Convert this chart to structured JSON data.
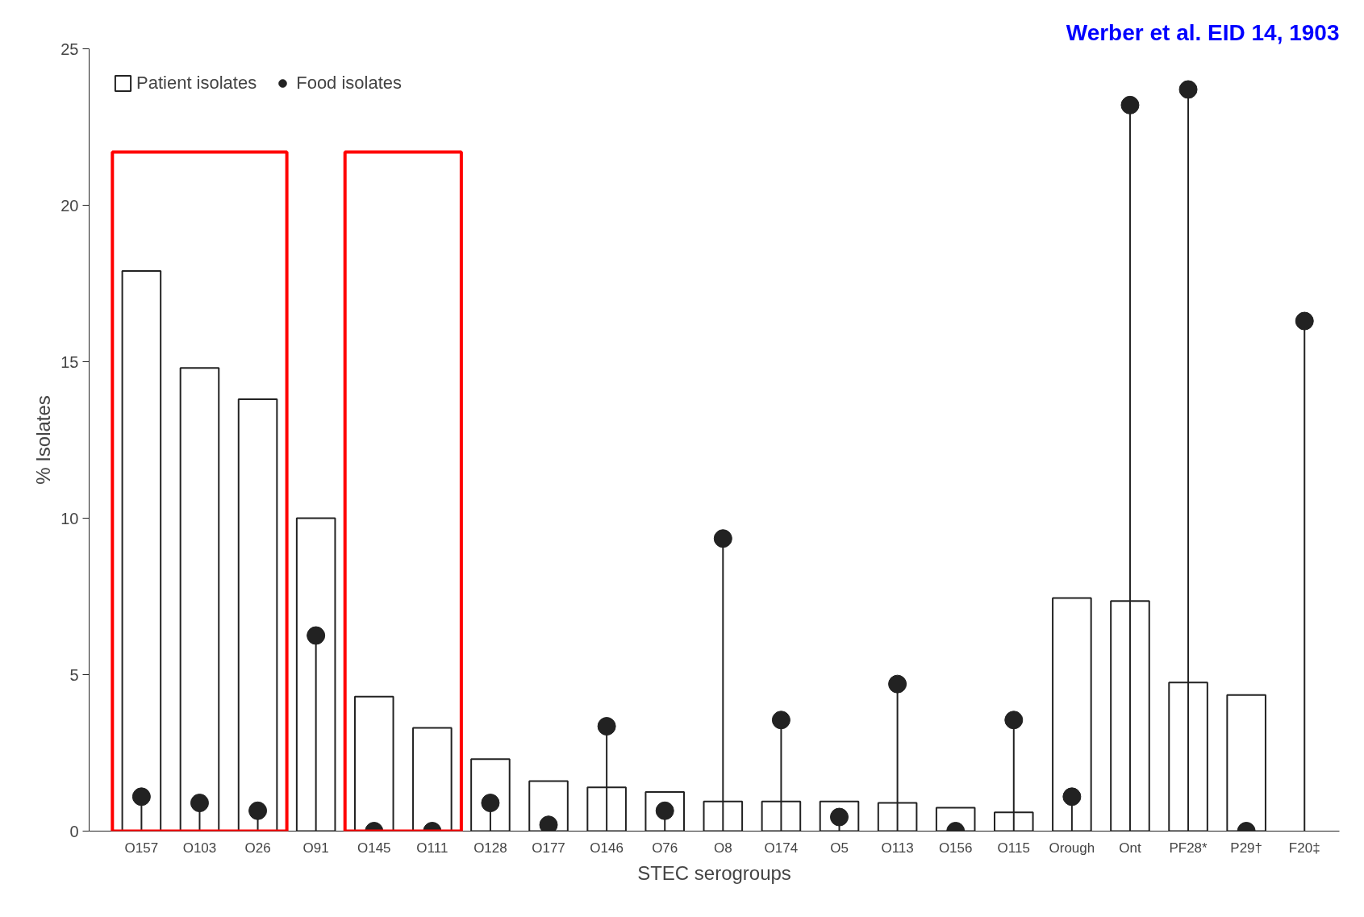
{
  "chart_data": {
    "type": "bar",
    "categories": [
      "O157",
      "O103",
      "O26",
      "O91",
      "O145",
      "O111",
      "O128",
      "O177",
      "O146",
      "O76",
      "O8",
      "O174",
      "O5",
      "O113",
      "O156",
      "O115",
      "Orough",
      "Ont",
      "PF28*",
      "P29†",
      "F20‡"
    ],
    "series": [
      {
        "name": "Patient isolates",
        "color": "#ffffff",
        "values": [
          17.9,
          14.8,
          13.8,
          10.0,
          4.3,
          3.3,
          2.3,
          1.6,
          1.4,
          1.25,
          0.95,
          0.95,
          0.95,
          0.9,
          0.75,
          0.6,
          7.45,
          7.35,
          4.75,
          4.35,
          null
        ]
      },
      {
        "name": "Food isolates",
        "type": "lollipop",
        "color": "#222222",
        "values": [
          1.1,
          0.9,
          0.65,
          6.25,
          0,
          0,
          0.9,
          0.2,
          3.35,
          0.65,
          9.35,
          3.55,
          0.45,
          4.7,
          0,
          3.55,
          1.1,
          23.2,
          23.7,
          0,
          16.3
        ]
      }
    ],
    "xlabel": "STEC serogroups",
    "ylabel": "% Isolates",
    "ylim": [
      0,
      25
    ],
    "yticks": [
      0,
      5,
      10,
      15,
      20,
      25
    ],
    "legend": "top left",
    "annotations": [
      "Werber et al. EID 14, 1903"
    ]
  }
}
